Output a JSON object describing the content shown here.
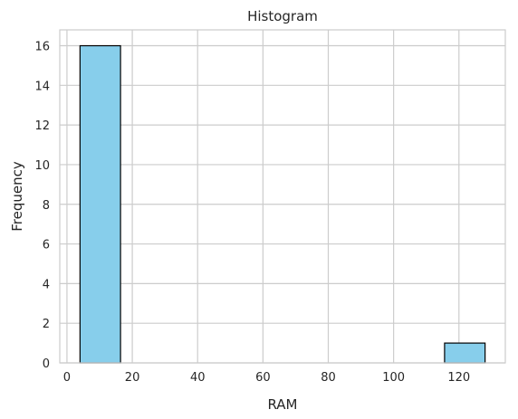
{
  "chart_data": {
    "type": "bar",
    "title": "Histogram",
    "xlabel": "RAM",
    "ylabel": "Frequency",
    "bins": [
      {
        "x_start": 4.0,
        "x_end": 16.4,
        "count": 16
      },
      {
        "x_start": 16.4,
        "x_end": 28.8,
        "count": 0
      },
      {
        "x_start": 28.8,
        "x_end": 41.2,
        "count": 0
      },
      {
        "x_start": 41.2,
        "x_end": 53.6,
        "count": 0
      },
      {
        "x_start": 53.6,
        "x_end": 66.0,
        "count": 0
      },
      {
        "x_start": 66.0,
        "x_end": 78.4,
        "count": 0
      },
      {
        "x_start": 78.4,
        "x_end": 90.8,
        "count": 0
      },
      {
        "x_start": 90.8,
        "x_end": 103.2,
        "count": 0
      },
      {
        "x_start": 103.2,
        "x_end": 115.6,
        "count": 0
      },
      {
        "x_start": 115.6,
        "x_end": 128.0,
        "count": 1
      }
    ],
    "xlim": [
      -2.2,
      134.2
    ],
    "ylim": [
      0,
      16.8
    ],
    "xticks": [
      0,
      20,
      40,
      60,
      80,
      100,
      120
    ],
    "yticks": [
      0,
      2,
      4,
      6,
      8,
      10,
      12,
      14,
      16
    ],
    "grid": true,
    "bar_color": "#87CEEB",
    "edge_color": "#000000",
    "grid_color": "#cccccc"
  }
}
